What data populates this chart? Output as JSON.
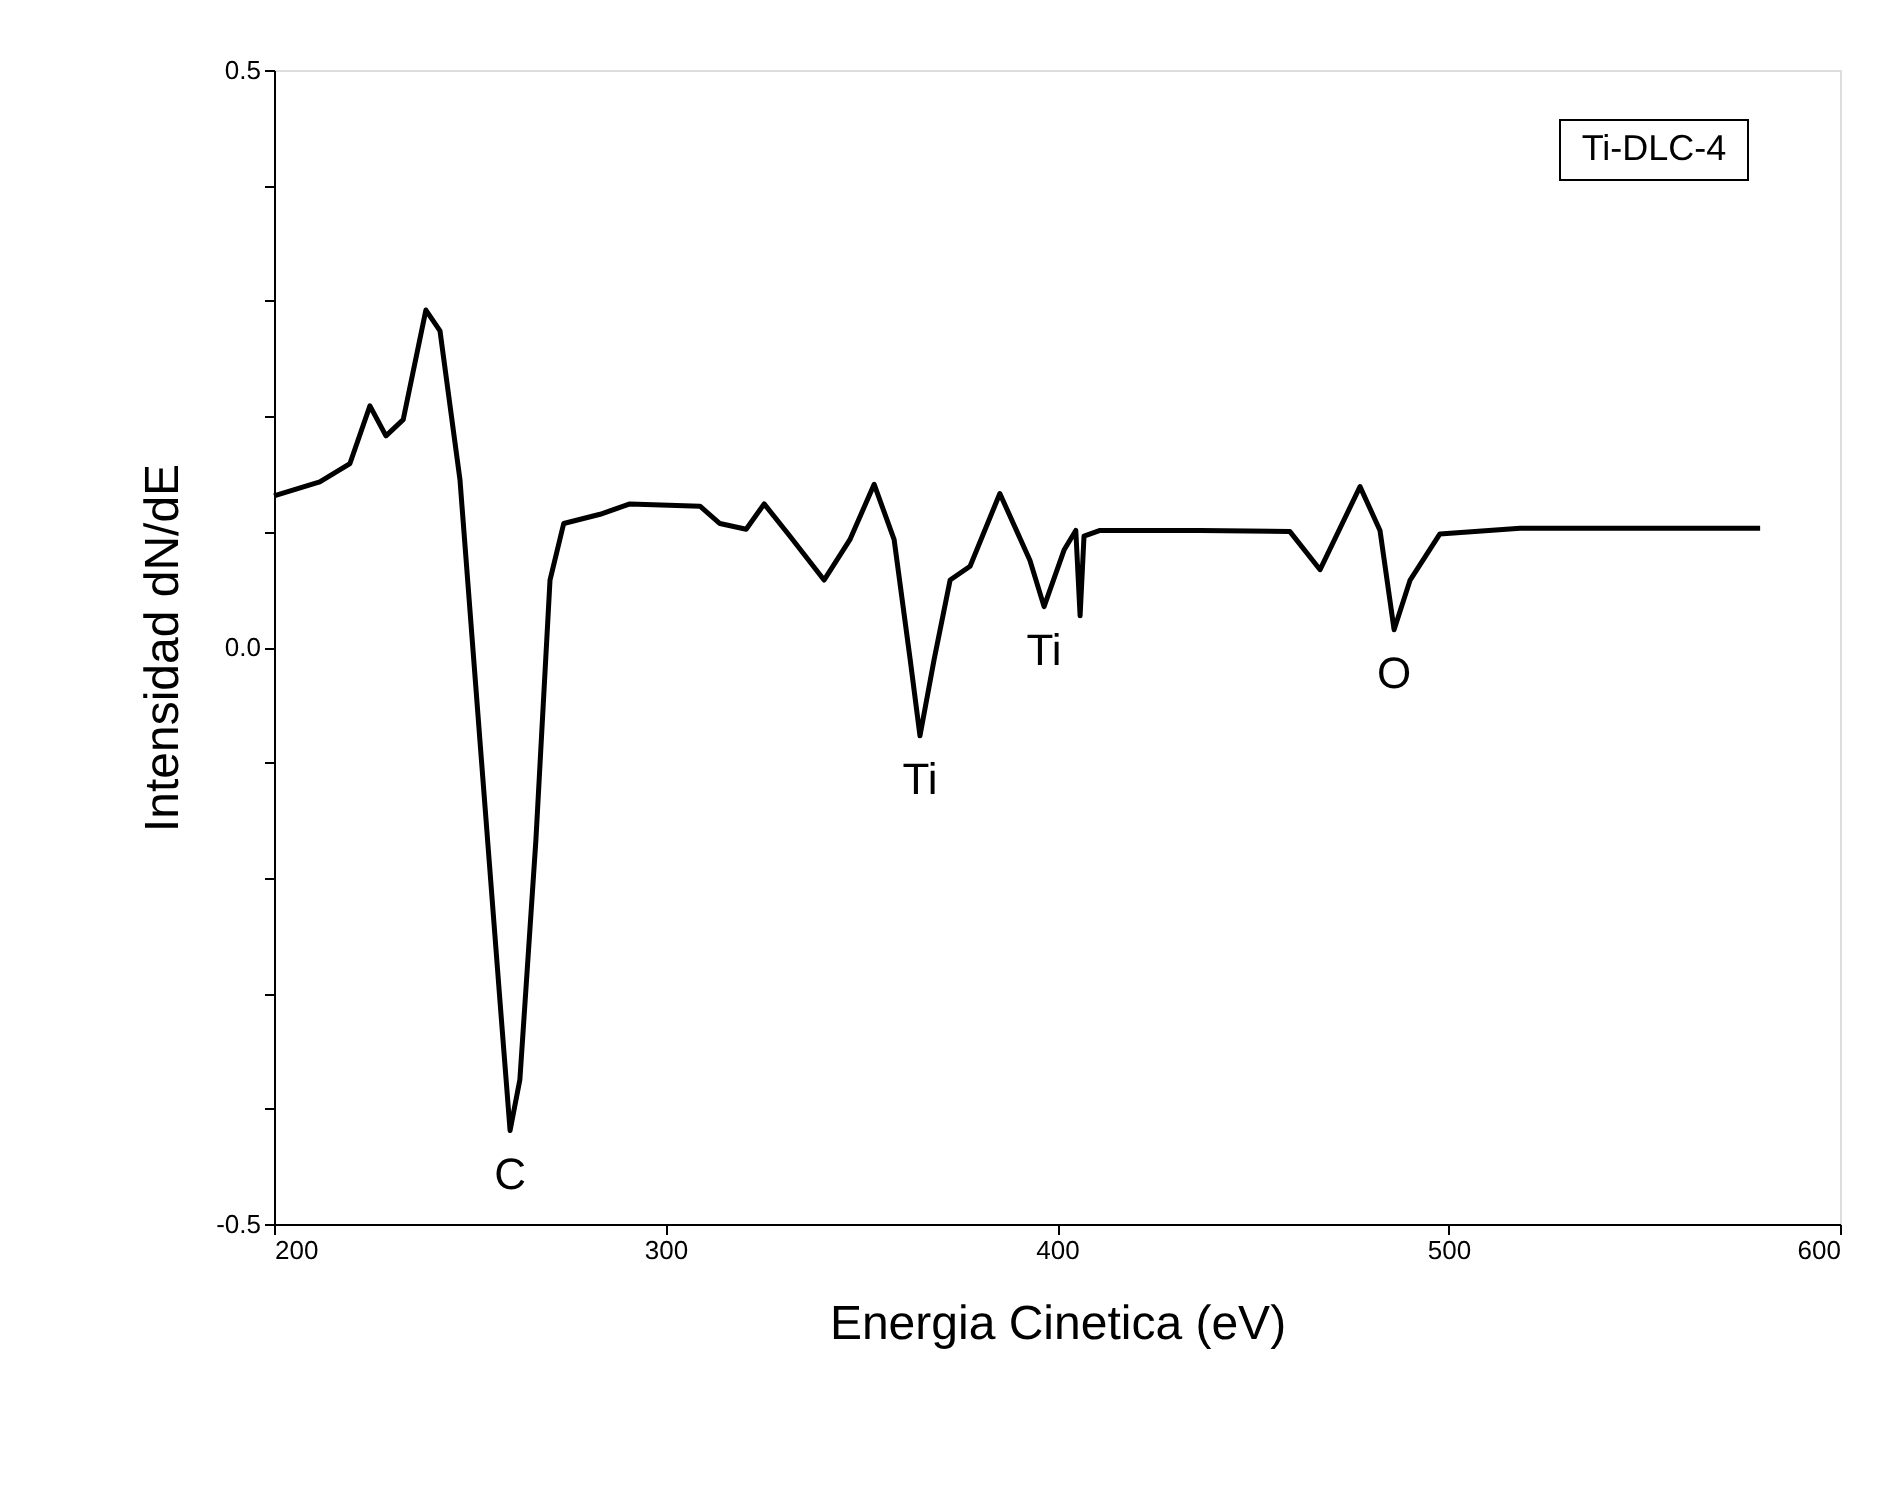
{
  "chart_data": {
    "type": "line",
    "xlabel": "Energia Cinetica (eV)",
    "ylabel": "Intensidad dN/dE",
    "xlim": [
      200,
      600
    ],
    "xticks": [
      200,
      300,
      400,
      500,
      600
    ],
    "ylim": [
      -0.5,
      0.5
    ],
    "yticks": [
      -0.5,
      {
        "value": -0.4,
        "label": null
      },
      {
        "value": -0.3,
        "label": null
      },
      {
        "value": -0.2,
        "label": null
      },
      {
        "value": -0.1,
        "label": null
      },
      {
        "value": 0.0,
        "label": "0.0"
      },
      {
        "value": 0.1,
        "label": null
      },
      {
        "value": 0.2,
        "label": null
      },
      {
        "value": 0.3,
        "label": null
      },
      {
        "value": 0.4,
        "label": null
      },
      0.5
    ],
    "grid": false,
    "marker": "none",
    "line_style": "solid",
    "series": [
      {
        "color": "#000000",
        "x": [
          200,
          211.7,
          219.4,
          224.5,
          228.6,
          233,
          238.8,
          242.4,
          247.5,
          252.6,
          257.7,
          260.3,
          262.8,
          266.9,
          270.5,
          274,
          283.3,
          290.9,
          308.8,
          313.9,
          320.6,
          325.2,
          331.8,
          340.5,
          347.1,
          353.3,
          358.4,
          362.5,
          365,
          368.6,
          372.7,
          377.8,
          385.4,
          393.1,
          396.7,
          401.8,
          404.8,
          405.9,
          406.9,
          411,
          436.5,
          459.5,
          467.2,
          477.4,
          482.5,
          486.1,
          490.2,
          497.8,
          518.3,
          579.6
        ],
        "values": [
          0.131,
          0.143,
          0.159,
          0.209,
          0.183,
          0.197,
          0.292,
          0.274,
          0.145,
          -0.081,
          -0.306,
          -0.419,
          -0.375,
          -0.167,
          0.058,
          0.107,
          0.115,
          0.124,
          0.122,
          0.107,
          0.102,
          0.124,
          0.096,
          0.058,
          0.093,
          0.141,
          0.093,
          -0.011,
          -0.077,
          -0.011,
          0.058,
          0.07,
          0.133,
          0.075,
          0.035,
          0.084,
          0.101,
          0.027,
          0.096,
          0.101,
          0.101,
          0.1,
          0.067,
          0.139,
          0.101,
          0.015,
          0.058,
          0.098,
          0.103,
          0.103
        ]
      }
    ],
    "annotations": [
      "Ti-DLC-4",
      {
        "text": "C",
        "x": 260.3,
        "y": -0.419
      },
      {
        "text": "Ti",
        "x": 365,
        "y": -0.077
      },
      {
        "text": "Ti",
        "x": 396.7,
        "y": 0.035
      },
      {
        "text": "O",
        "x": 486.1,
        "y": 0.015
      }
    ]
  }
}
